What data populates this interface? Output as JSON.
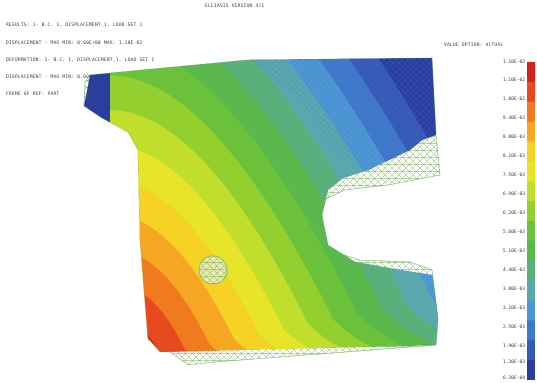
{
  "header": {
    "title": "ELLIASIS VERSION 4/1",
    "lines": [
      "RESULTS: 1- B.C. 1, DISPLACEMENT_1, LOAD SET 1",
      "DISPLACEMENT - MAG MIN: 0.00E+00 MAX: 1.10E-02",
      "DEFORMATION: 1- B.C. 1, DISPLACEMENT_1, LOAD SET 1",
      "DISPLACEMENT - MAG MIN: 0.00E+00 MAX: 1.10E-02",
      "FRAME OF REF: PART"
    ]
  },
  "legend": {
    "title": "VALUE OPTION: ACTUAL",
    "ticks": [
      "1.10E-02",
      "1.10E-02",
      "1.00E-02",
      "9.40E-03",
      "8.80E-03",
      "8.10E-03",
      "7.50E-03",
      "6.90E-03",
      "6.20E-03",
      "5.60E-03",
      "5.10E-03",
      "4.40E-03",
      "3.80E-03",
      "3.10E-03",
      "2.50E-03",
      "1.90E-03",
      "1.30E-03",
      "6.30E-04"
    ],
    "colors": [
      "#d42020",
      "#e64a1e",
      "#f07a1e",
      "#f7a623",
      "#f6d225",
      "#e7e42a",
      "#c2de2c",
      "#93cf2f",
      "#6cc13a",
      "#5bb84d",
      "#5ab07a",
      "#5aa8ad",
      "#4d98d2",
      "#3f79c9",
      "#3559b6",
      "#2a3e9e"
    ]
  },
  "plot": {
    "contour_colors": [
      "#d42020",
      "#e64a1e",
      "#f07a1e",
      "#f7a623",
      "#f6d225",
      "#e7e42a",
      "#c2de2c",
      "#93cf2f",
      "#6cc13a",
      "#5bb84d",
      "#5ab07a",
      "#5aa8ad",
      "#4d98d2",
      "#3f79c9",
      "#3559b6",
      "#2a3e9e"
    ],
    "mesh_color": "#7ab05a"
  }
}
